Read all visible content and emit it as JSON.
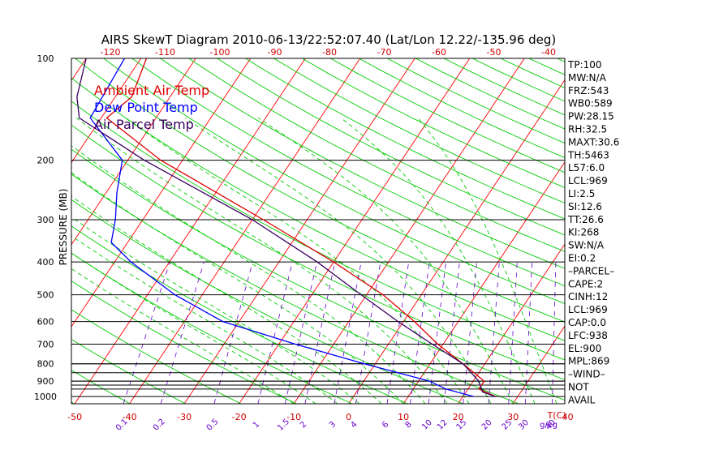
{
  "chart_data": {
    "type": "line",
    "title": "AIRS SkewT Diagram 2010-06-13/22:52:07.40 (Lat/Lon 12.22/-135.96 deg)",
    "ylabel": "PRESSURE (MB)",
    "xlabel": "T(C)",
    "mixing_ratio_label": "g/kg",
    "y_scale": "log",
    "ylim": [
      1050,
      100
    ],
    "pressure_ticks": [
      100,
      200,
      300,
      400,
      500,
      600,
      700,
      800,
      900,
      1000
    ],
    "top_temp_ticks": [
      -120,
      -110,
      -100,
      -90,
      -80,
      -70,
      -60,
      -50,
      -40
    ],
    "bottom_temp_ticks": [
      -50,
      -40,
      -30,
      -20,
      -10,
      0,
      10,
      20,
      30,
      40
    ],
    "mixing_ratio_ticks": [
      "0.1",
      "0.2",
      "0.5",
      "1",
      "1.5",
      "2",
      "3",
      "4",
      "6",
      "8",
      "10",
      "12",
      "15",
      "20",
      "25",
      "30",
      "40"
    ],
    "legend": [
      "Ambient Air Temp",
      "Dew Point Temp",
      "Air Parcel Temp"
    ],
    "legend_position": "top-left",
    "colors": {
      "ambient": "#dd0000",
      "dewpoint": "#0000ff",
      "parcel": "#3a0060",
      "isotherm": "#ff0000",
      "dry_adiabat": "#00cc00",
      "moist_adiabat": "#00cc00",
      "mixing_ratio": "#6600cc",
      "isobar": "#000000"
    },
    "series": [
      {
        "name": "Ambient Air Temp",
        "points": [
          [
            100,
            -79
          ],
          [
            130,
            -77
          ],
          [
            150,
            -79
          ],
          [
            200,
            -64
          ],
          [
            300,
            -38
          ],
          [
            400,
            -20
          ],
          [
            500,
            -7
          ],
          [
            600,
            2
          ],
          [
            700,
            9
          ],
          [
            800,
            16
          ],
          [
            900,
            22
          ],
          [
            950,
            22
          ],
          [
            1000,
            26
          ]
        ]
      },
      {
        "name": "Dew Point Temp",
        "points": [
          [
            100,
            -83
          ],
          [
            150,
            -82
          ],
          [
            200,
            -71
          ],
          [
            250,
            -68
          ],
          [
            300,
            -65
          ],
          [
            350,
            -63
          ],
          [
            400,
            -57
          ],
          [
            500,
            -45
          ],
          [
            600,
            -33
          ],
          [
            700,
            -17
          ],
          [
            800,
            -2
          ],
          [
            900,
            12
          ],
          [
            950,
            16
          ],
          [
            1000,
            22
          ]
        ]
      },
      {
        "name": "Air Parcel Temp",
        "points": [
          [
            100,
            -90
          ],
          [
            130,
            -87
          ],
          [
            150,
            -84
          ],
          [
            200,
            -67
          ],
          [
            300,
            -40
          ],
          [
            400,
            -23
          ],
          [
            500,
            -11
          ],
          [
            600,
            -1
          ],
          [
            700,
            8
          ],
          [
            800,
            16
          ],
          [
            900,
            21
          ],
          [
            969,
            23
          ],
          [
            1000,
            26
          ]
        ]
      }
    ]
  },
  "indices": [
    "TP:100",
    "MW:N/A",
    "FRZ:543",
    "WB0:589",
    "PW:28.15",
    "RH:32.5",
    "MAXT:30.6",
    "TH:5463",
    "L57:6.0",
    "LCL:969",
    "LI:2.5",
    "SI:12.6",
    "TT:26.6",
    "KI:268",
    "SW:N/A",
    "EI:0.2",
    "–PARCEL–",
    "CAPE:2",
    "CINH:12",
    "LCL:969",
    "CAP:0.0",
    "LFC:938",
    "EL:900",
    "MPL:869",
    "–WIND–",
    "NOT",
    "AVAIL"
  ]
}
